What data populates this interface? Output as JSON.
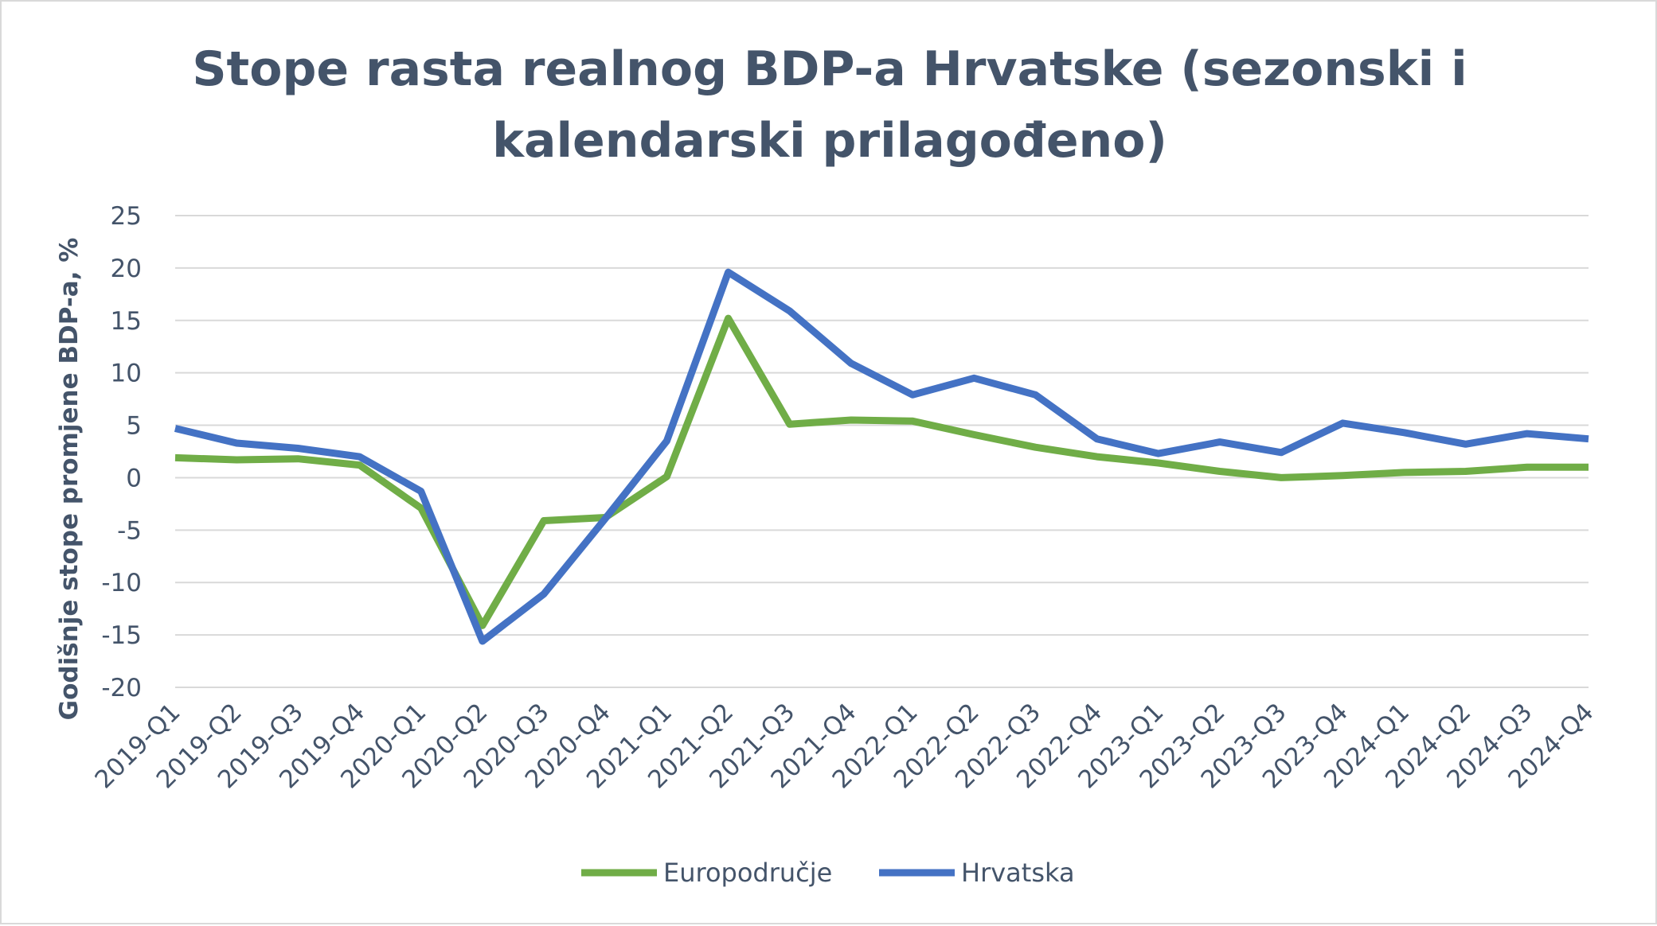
{
  "chart_data": {
    "type": "line",
    "title": "Stope rasta realnog BDP-a Hrvatske (sezonski i kalendarski prilagođeno)",
    "title_lines": [
      "Stope rasta realnog BDP-a Hrvatske (sezonski i",
      "kalendarski prilagođeno)"
    ],
    "xlabel": "",
    "ylabel": "Godišnje stope promjene BDP-a, %",
    "ylim": [
      -20,
      25
    ],
    "yticks": [
      25,
      20,
      15,
      10,
      5,
      0,
      -5,
      -10,
      -15,
      -20
    ],
    "ytick_labels": [
      "25",
      "20",
      "15",
      "10",
      "5",
      "0",
      "-5",
      "-10",
      "-15",
      "-20"
    ],
    "grid": true,
    "legend_position": "bottom",
    "categories": [
      "2019-Q1",
      "2019-Q2",
      "2019-Q3",
      "2019-Q4",
      "2020-Q1",
      "2020-Q2",
      "2020-Q3",
      "2020-Q4",
      "2021-Q1",
      "2021-Q2",
      "2021-Q3",
      "2021-Q4",
      "2022-Q1",
      "2022-Q2",
      "2022-Q3",
      "2022-Q4",
      "2023-Q1",
      "2023-Q2",
      "2023-Q3",
      "2023-Q4",
      "2024-Q1",
      "2024-Q2",
      "2024-Q3",
      "2024-Q4"
    ],
    "series": [
      {
        "name": "Europodručje",
        "color": "#70ad47",
        "values": [
          1.9,
          1.7,
          1.8,
          1.2,
          -2.9,
          -14.1,
          -4.1,
          -3.8,
          0.1,
          15.2,
          5.1,
          5.5,
          5.4,
          4.1,
          2.9,
          2.0,
          1.4,
          0.6,
          0.0,
          0.2,
          0.5,
          0.6,
          1.0,
          1.0
        ]
      },
      {
        "name": "Hrvatska",
        "color": "#4472c4",
        "values": [
          4.7,
          3.3,
          2.8,
          2.0,
          -1.3,
          -15.6,
          -11.1,
          -3.9,
          3.5,
          19.6,
          15.9,
          10.9,
          7.9,
          9.5,
          7.9,
          3.7,
          2.3,
          3.4,
          2.4,
          5.2,
          4.3,
          3.2,
          4.2,
          3.7
        ]
      }
    ]
  }
}
